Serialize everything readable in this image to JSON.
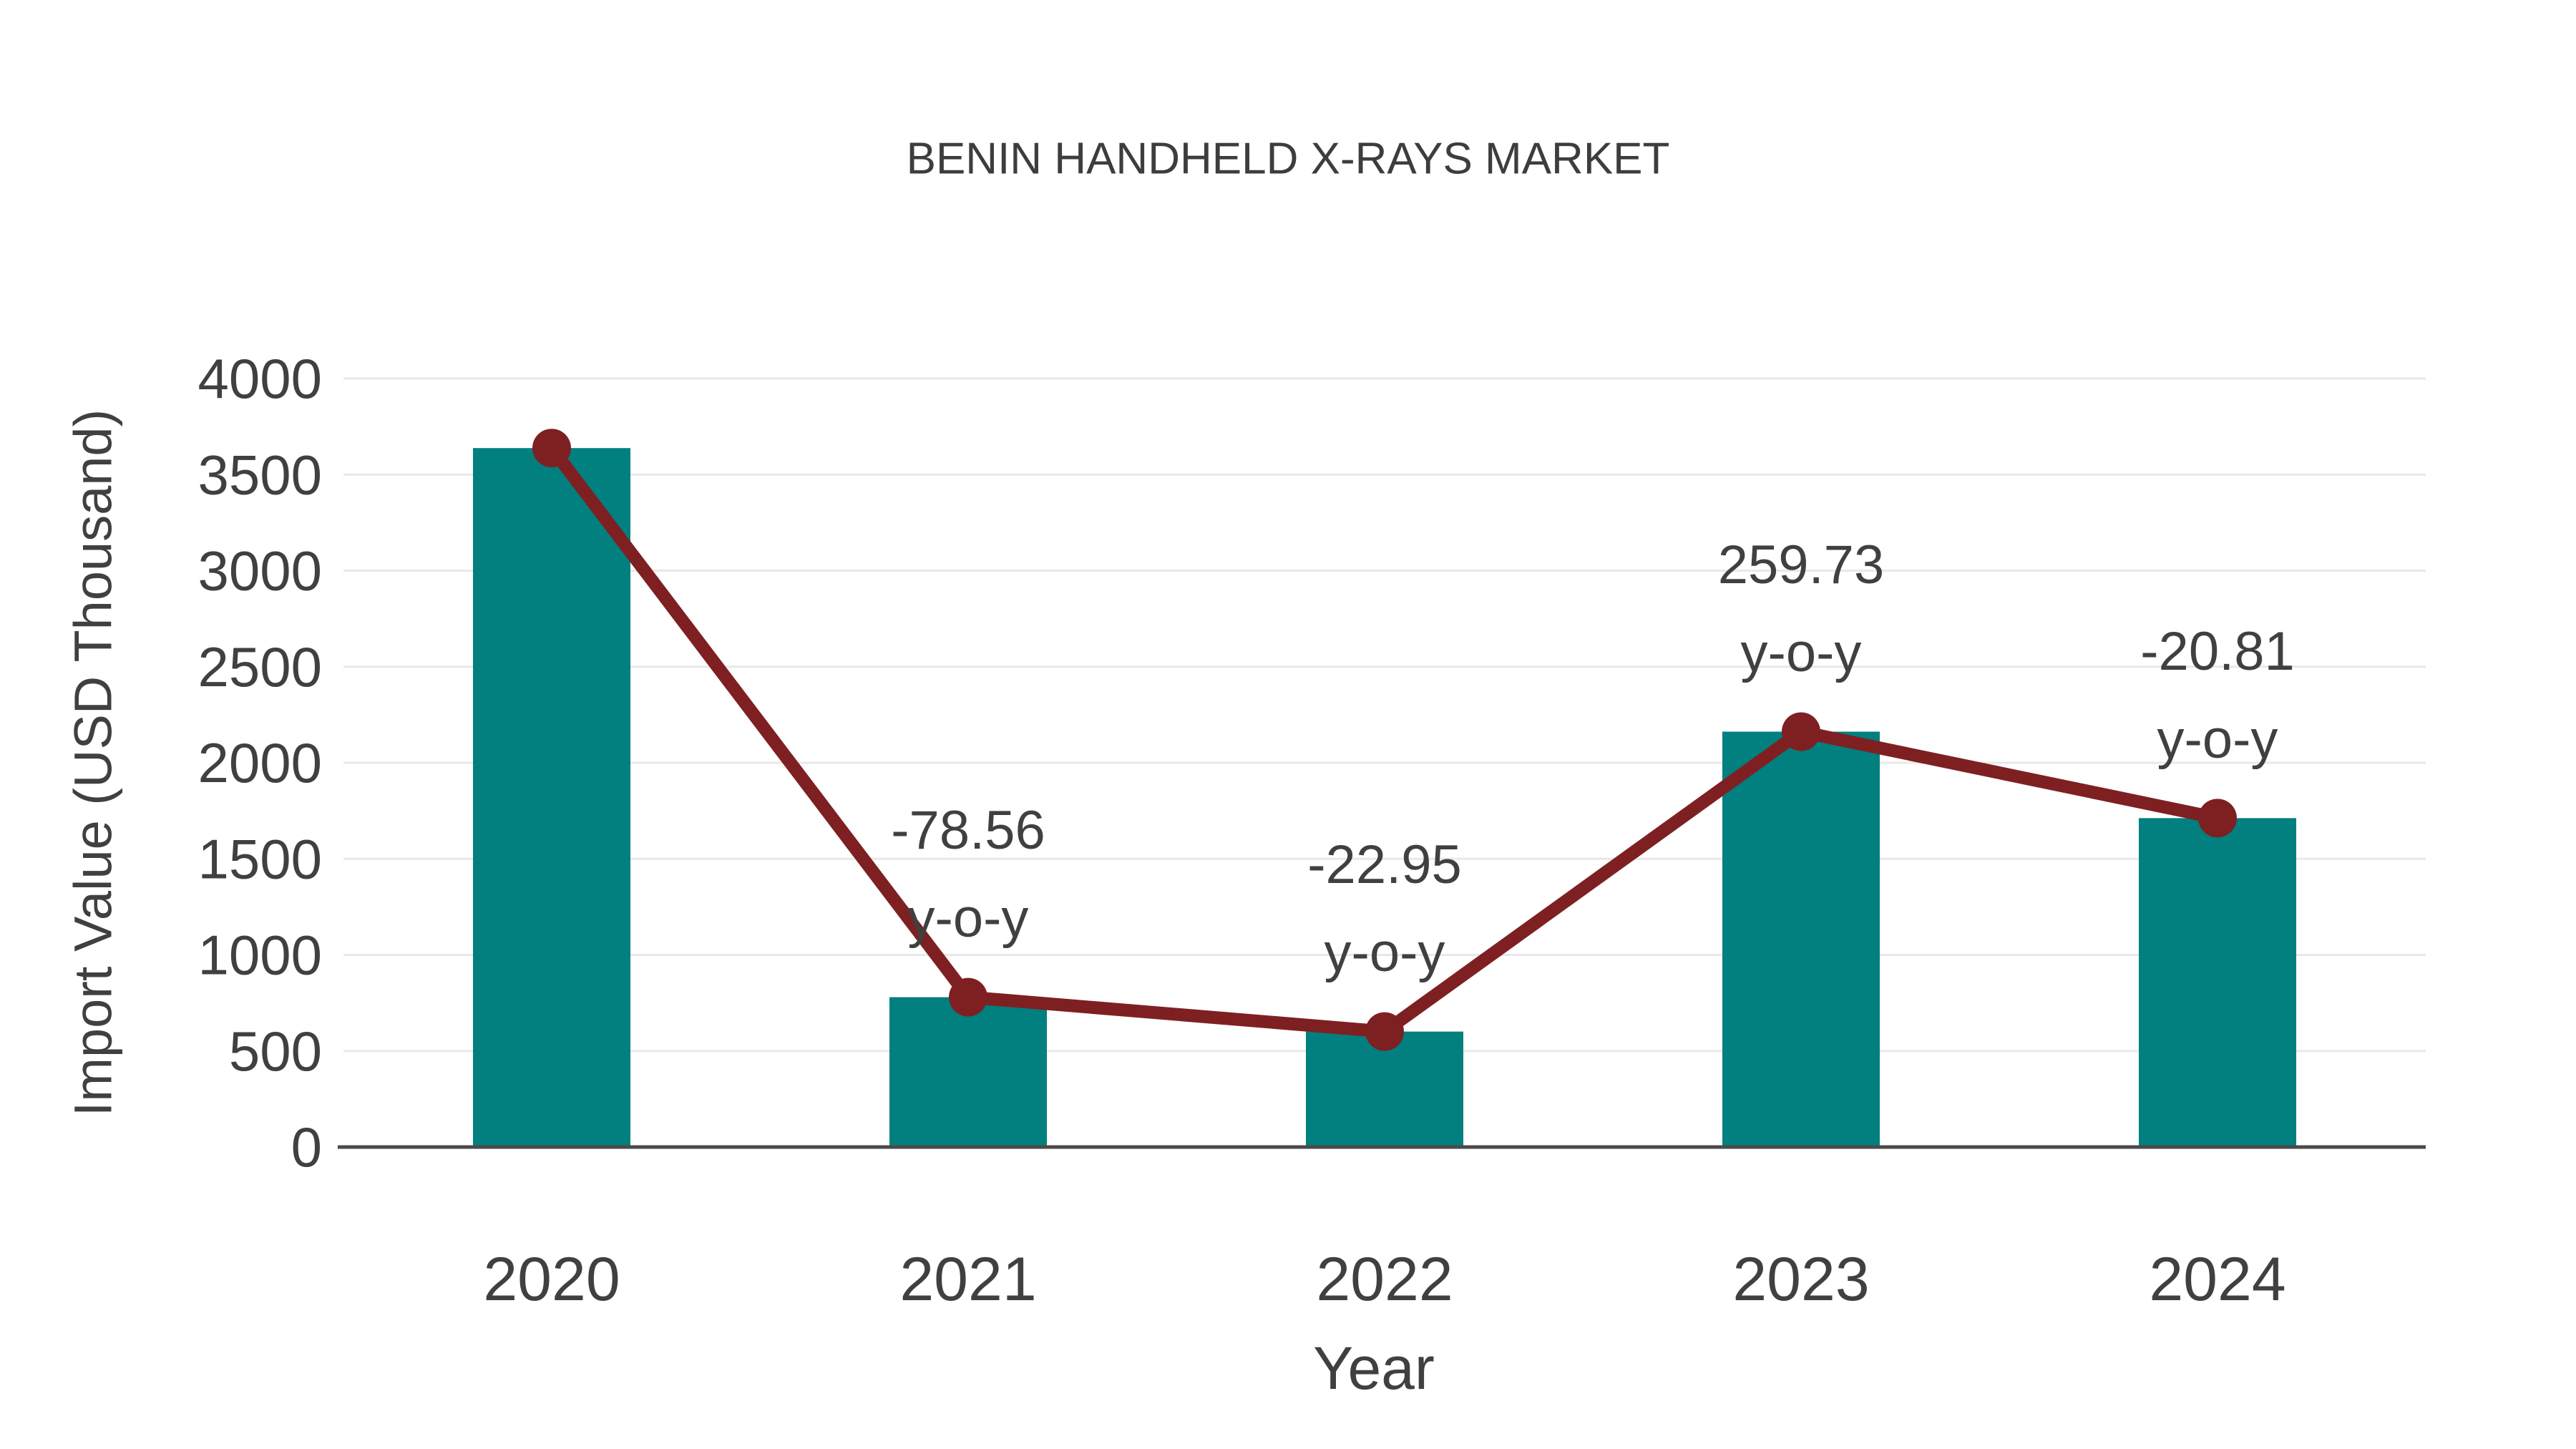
{
  "page": {
    "background": "#ffffff"
  },
  "chart_data": {
    "type": "bar",
    "title": "BENIN HANDHELD X-RAYS MARKET",
    "xlabel": "Year",
    "ylabel": "Import Value (USD Thousand)",
    "categories": [
      "2020",
      "2021",
      "2022",
      "2023",
      "2024"
    ],
    "series": [
      {
        "name": "import-value-bars",
        "type": "bar",
        "color": "#027f7f",
        "values": [
          3638,
          780,
          601,
          2162,
          1712
        ]
      },
      {
        "name": "import-value-trend-line",
        "type": "line",
        "color": "#7e2022",
        "values": [
          3638,
          780,
          601,
          2162,
          1712
        ]
      }
    ],
    "annotations": [
      {
        "category": "2021",
        "value_label": "-78.56",
        "sub_label": "y-o-y"
      },
      {
        "category": "2022",
        "value_label": "-22.95",
        "sub_label": "y-o-y"
      },
      {
        "category": "2023",
        "value_label": "259.73",
        "sub_label": "y-o-y"
      },
      {
        "category": "2024",
        "value_label": "-20.81",
        "sub_label": "y-o-y"
      }
    ],
    "ylim": [
      0,
      4000
    ],
    "yticks": [
      0,
      500,
      1000,
      1500,
      2000,
      2500,
      3000,
      3500,
      4000
    ],
    "grid": true,
    "legend_position": "none",
    "colors": {
      "bar": "#027f7f",
      "line": "#7e2022",
      "text": "#404040",
      "grid": "#e8e8e8",
      "axis_line": "#4a4a4a",
      "background": "#ffffff"
    }
  }
}
